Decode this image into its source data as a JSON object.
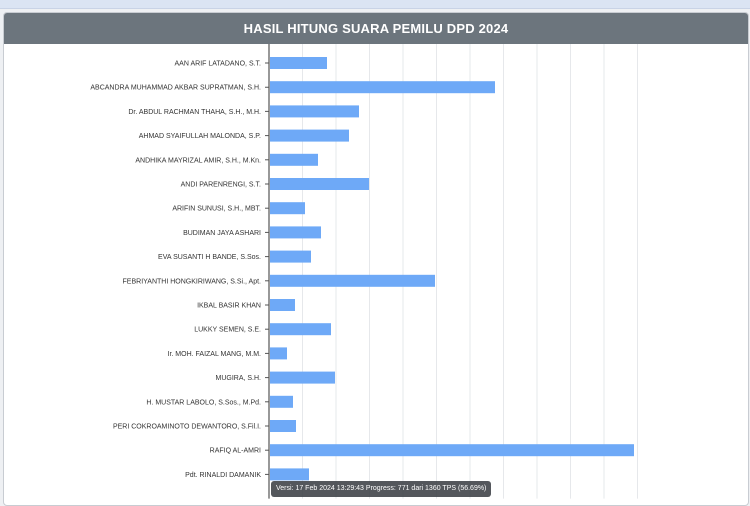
{
  "page": {
    "title": "HASIL HITUNG SUARA PEMILU DPD 2024"
  },
  "status": {
    "text": "Versi: 17 Feb 2024 13:29:43 Progress: 771 dari 1360 TPS (56.69%)"
  },
  "colors": {
    "bar": "#6ea9f7",
    "header": "#6c757d",
    "grid": "#e6e8eb",
    "axis": "#555555"
  },
  "chart_data": {
    "type": "bar",
    "orientation": "horizontal",
    "categories": [
      "AAN ARIF LATADANO, S.T.",
      "ABCANDRA MUHAMMAD AKBAR SUPRATMAN, S.H.",
      "Dr. ABDUL RACHMAN THAHA, S.H., M.H.",
      "AHMAD SYAIFULLAH MALONDA, S.P.",
      "ANDHIKA MAYRIZAL AMIR, S.H., M.Kn.",
      "ANDI PARENRENGI, S.T.",
      "ARIFIN SUNUSI, S.H., MBT.",
      "BUDIMAN JAYA ASHARI",
      "EVA SUSANTI H BANDE, S.Sos.",
      "FEBRIYANTHI HONGKIRIWANG, S.Si., Apt.",
      "IKBAL BASIR KHAN",
      "LUKKY SEMEN, S.E.",
      "Ir. MOH. FAIZAL MANG, M.M.",
      "MUGIRA, S.H.",
      "H. MUSTAR LABOLO, S.Sos., M.Pd.",
      "PERI COKROAMINOTO DEWANTORO, S.Fil.I.",
      "RAFIQ AL-AMRI",
      "Pdt. RINALDI DAMANIK"
    ],
    "values": [
      57,
      225,
      89,
      79,
      48,
      99,
      35,
      51,
      41,
      165,
      25,
      61,
      17,
      65,
      23,
      26,
      364,
      39
    ],
    "xlim": [
      0,
      400
    ],
    "grid": true,
    "legend": "none"
  }
}
